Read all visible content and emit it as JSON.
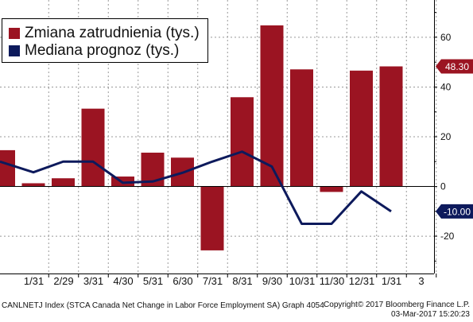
{
  "chart_data": {
    "type": "bar",
    "categories": [
      "",
      "1/31",
      "2/29",
      "3/31",
      "4/30",
      "5/31",
      "6/30",
      "7/31",
      "8/31",
      "9/30",
      "10/31",
      "11/30",
      "12/31",
      "1/31",
      "3"
    ],
    "series": [
      {
        "name": "Zmiana zatrudnienia (tys.)",
        "type": "bar",
        "color": "#9b1422",
        "values": [
          14.6,
          1.3,
          3.3,
          31.3,
          4.0,
          13.6,
          11.6,
          -25.7,
          35.9,
          64.8,
          47.1,
          -2.2,
          46.6,
          48.3,
          null
        ]
      },
      {
        "name": "Mediana prognoz (tys.)",
        "type": "line",
        "color": "#0d1a5c",
        "values": [
          10.0,
          5.7,
          10.0,
          10.0,
          1.5,
          2.0,
          5.5,
          10.0,
          14.0,
          8.0,
          -15.0,
          -15.0,
          -2.0,
          -10.0,
          null
        ]
      }
    ],
    "ylim": [
      -35,
      75
    ],
    "yticks": [
      -20,
      0,
      20,
      40,
      60
    ],
    "grid": true,
    "legend_position": "top-left",
    "last_value_labels": [
      {
        "text": "48.30",
        "series": 0,
        "value": 48.3
      },
      {
        "text": "-10.00",
        "series": 1,
        "value": -10.0
      }
    ]
  },
  "footer": {
    "left": "CANLNETJ Index (STCA Canada Net Change in Labor Force Employment SA) Graph 4054",
    "right_line1": "Copyright© 2017 Bloomberg Finance L.P.",
    "right_line2": "03-Mar-2017 15:20:23"
  }
}
